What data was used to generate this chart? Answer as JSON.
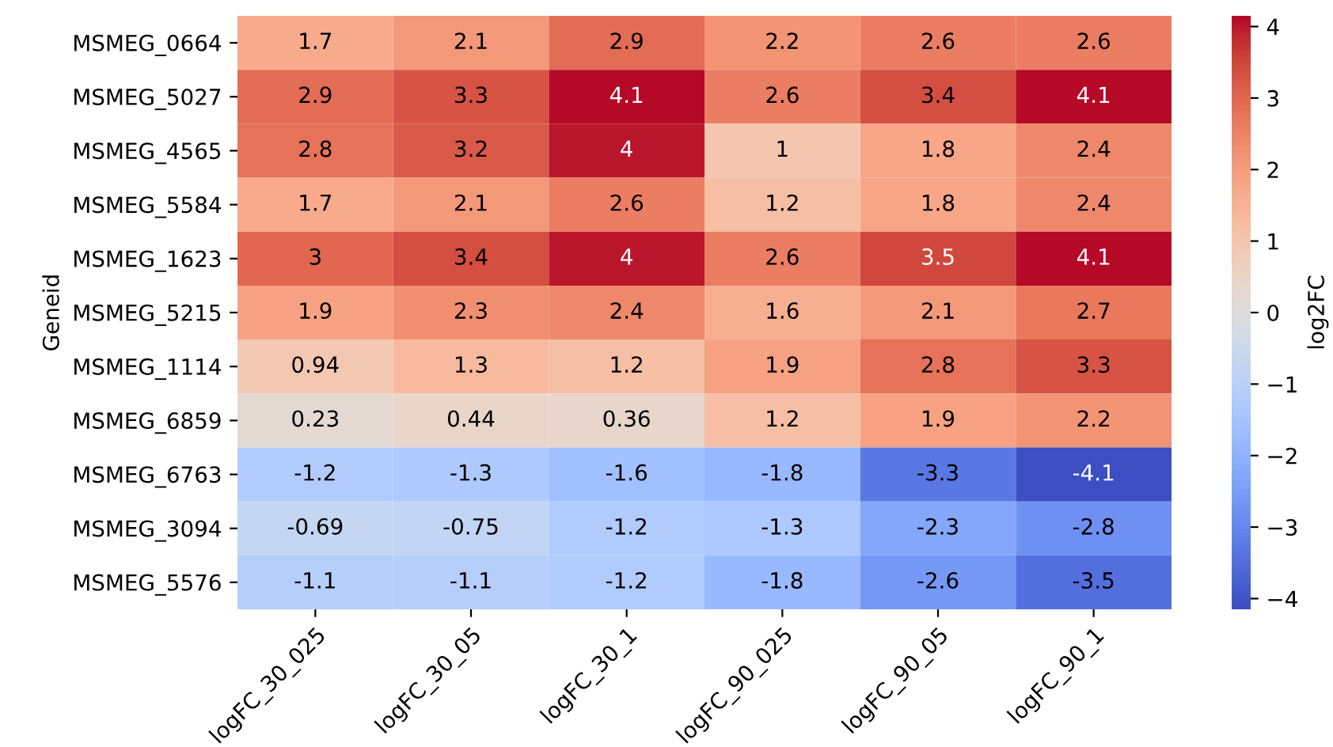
{
  "chart_data": {
    "type": "heatmap",
    "ylabel": "Geneid",
    "clabel": "log2FC",
    "categories": [
      "logFC_30_025",
      "logFC_30_05",
      "logFC_30_1",
      "logFC_90_025",
      "logFC_90_05",
      "logFC_90_1"
    ],
    "y_categories": [
      "MSMEG_0664",
      "MSMEG_5027",
      "MSMEG_4565",
      "MSMEG_5584",
      "MSMEG_1623",
      "MSMEG_5215",
      "MSMEG_1114",
      "MSMEG_6859",
      "MSMEG_6763",
      "MSMEG_3094",
      "MSMEG_5576"
    ],
    "cells": [
      [
        1.7,
        2.1,
        2.9,
        2.2,
        2.6,
        2.6
      ],
      [
        2.9,
        3.3,
        4.1,
        2.6,
        3.4,
        4.1
      ],
      [
        2.8,
        3.2,
        4,
        1,
        1.8,
        2.4
      ],
      [
        1.7,
        2.1,
        2.6,
        1.2,
        1.8,
        2.4
      ],
      [
        3,
        3.4,
        4,
        2.6,
        3.5,
        4.1
      ],
      [
        1.9,
        2.3,
        2.4,
        1.6,
        2.1,
        2.7
      ],
      [
        0.94,
        1.3,
        1.2,
        1.9,
        2.8,
        3.3
      ],
      [
        0.23,
        0.44,
        0.36,
        1.2,
        1.9,
        2.2
      ],
      [
        -1.2,
        -1.3,
        -1.6,
        -1.8,
        -3.3,
        -4.1
      ],
      [
        -0.69,
        -0.75,
        -1.2,
        -1.3,
        -2.3,
        -2.8
      ],
      [
        -1.1,
        -1.1,
        -1.2,
        -1.8,
        -2.6,
        -3.5
      ]
    ],
    "clim": [
      -4.15,
      4.15
    ],
    "cticks": [
      -4,
      -3,
      -2,
      -1,
      0,
      1,
      2,
      3,
      4
    ],
    "data_labels": true
  }
}
